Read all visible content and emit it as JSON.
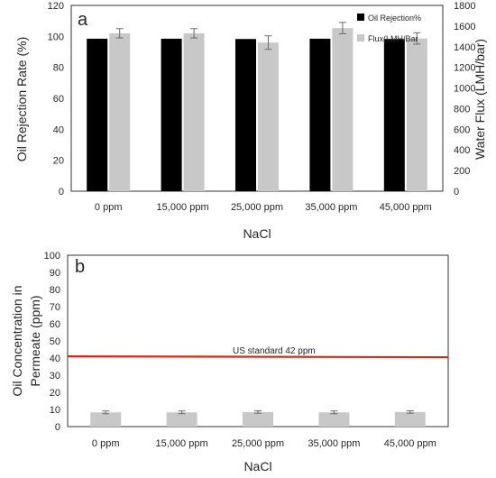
{
  "chart_data": [
    {
      "type": "bar",
      "panel_label": "a",
      "categories": [
        "0 ppm",
        "15,000 ppm",
        "25,000 ppm",
        "35,000 ppm",
        "45,000 ppm"
      ],
      "xlabel": "NaCl",
      "ylabel": "Oil Rejection Rate (%)",
      "ylabel_right": "Water Flux (LMH/bar)",
      "ylim": [
        0,
        120
      ],
      "yticks": [
        0,
        20,
        40,
        60,
        80,
        100,
        120
      ],
      "ylim_right": [
        0,
        1800
      ],
      "yticks_right": [
        0,
        200,
        400,
        600,
        800,
        1000,
        1200,
        1400,
        1600,
        1800
      ],
      "legend_position": "top-right",
      "series": [
        {
          "name": "Oil Rejection%",
          "axis": "left",
          "color": "#000000",
          "values": [
            98.5,
            98.5,
            98.3,
            98.5,
            98.3
          ],
          "errors": [
            0,
            0,
            0,
            0,
            0
          ]
        },
        {
          "name": "Flux(LMH/Bar",
          "axis": "right",
          "color": "#c8c8c8",
          "values": [
            1530,
            1530,
            1440,
            1580,
            1480
          ],
          "errors": [
            45,
            45,
            65,
            55,
            55
          ]
        }
      ]
    },
    {
      "type": "bar",
      "panel_label": "b",
      "categories": [
        "0 ppm",
        "15,000 ppm",
        "25,000 ppm",
        "35,000 ppm",
        "45,000 ppm"
      ],
      "xlabel": "NaCl",
      "ylabel": "Oil Concentration in Permeate (ppm)",
      "ylim": [
        0,
        100
      ],
      "yticks": [
        0,
        10,
        20,
        30,
        40,
        50,
        60,
        70,
        80,
        90,
        100
      ],
      "series": [
        {
          "color": "#c8c8c8",
          "values": [
            8.3,
            8.3,
            8.5,
            8.3,
            8.5
          ],
          "errors": [
            0.8,
            0.8,
            0.7,
            0.8,
            0.7
          ]
        }
      ],
      "reference_line": {
        "label": "US standard 42 ppm",
        "value_start": 41,
        "value_end": 40.5,
        "color": "#e8201c"
      }
    }
  ]
}
